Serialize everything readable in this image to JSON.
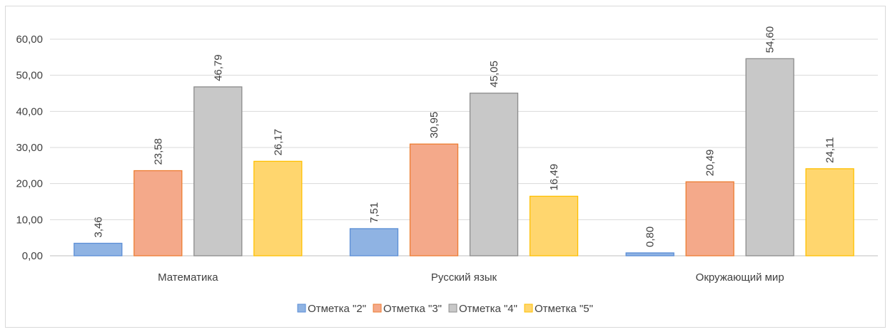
{
  "chart_data": {
    "type": "bar",
    "categories": [
      "Математика",
      "Русский язык",
      "Окружающий мир"
    ],
    "series": [
      {
        "name": "Отметка \"2\"",
        "values": [
          3.46,
          7.51,
          0.8
        ],
        "color": "#8fb3e3",
        "stroke": "#5b8ed6"
      },
      {
        "name": "Отметка \"3\"",
        "values": [
          23.58,
          30.95,
          20.49
        ],
        "color": "#f4a98a",
        "stroke": "#ed7d31"
      },
      {
        "name": "Отметка \"4\"",
        "values": [
          46.79,
          45.05,
          54.6
        ],
        "color": "#c8c8c8",
        "stroke": "#8c8c8c"
      },
      {
        "name": "Отметка \"5\"",
        "values": [
          26.17,
          16.49,
          24.11
        ],
        "color": "#ffd66e",
        "stroke": "#ffc000"
      }
    ],
    "data_labels": [
      [
        "3,46",
        "7,51",
        "0,80"
      ],
      [
        "23,58",
        "30,95",
        "20,49"
      ],
      [
        "46,79",
        "45,05",
        "54,60"
      ],
      [
        "26,17",
        "16,49",
        "24,11"
      ]
    ],
    "ylim": [
      0,
      60
    ],
    "yticks": [
      0,
      10,
      20,
      30,
      40,
      50,
      60
    ],
    "ytick_labels": [
      "0,00",
      "10,00",
      "20,00",
      "30,00",
      "40,00",
      "50,00",
      "60,00"
    ],
    "grid": true,
    "legend": "bottom"
  }
}
